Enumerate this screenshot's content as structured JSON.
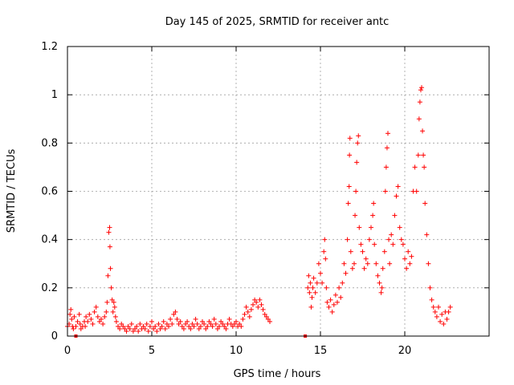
{
  "chart_data": {
    "type": "scatter",
    "title": "Day 145 of 2025, SRMTID for receiver antc",
    "xlabel": "GPS time / hours",
    "ylabel": "SRMTID / TECUs",
    "xlim": [
      0,
      25
    ],
    "ylim": [
      0,
      1.2
    ],
    "xticks": [
      0,
      5,
      10,
      15,
      20
    ],
    "yticks": [
      0,
      0.2,
      0.4,
      0.6,
      0.8,
      1,
      1.2
    ],
    "ytick_labels": [
      "0",
      "0.2",
      "0.4",
      "0.6",
      "0.8",
      "1",
      "1.2"
    ],
    "grid": true,
    "marker": "+",
    "color": "#ff0000",
    "series": [
      {
        "name": "SRMTID",
        "points": [
          [
            0.0,
            0.04
          ],
          [
            0.1,
            0.05
          ],
          [
            0.15,
            0.09
          ],
          [
            0.2,
            0.11
          ],
          [
            0.25,
            0.07
          ],
          [
            0.3,
            0.04
          ],
          [
            0.35,
            0.03
          ],
          [
            0.4,
            0.08
          ],
          [
            0.5,
            0.04
          ],
          [
            0.6,
            0.06
          ],
          [
            0.7,
            0.09
          ],
          [
            0.75,
            0.05
          ],
          [
            0.8,
            0.03
          ],
          [
            0.9,
            0.04
          ],
          [
            1.0,
            0.06
          ],
          [
            1.05,
            0.04
          ],
          [
            1.1,
            0.08
          ],
          [
            1.2,
            0.06
          ],
          [
            1.3,
            0.09
          ],
          [
            1.4,
            0.07
          ],
          [
            1.5,
            0.05
          ],
          [
            1.6,
            0.1
          ],
          [
            1.7,
            0.12
          ],
          [
            1.8,
            0.08
          ],
          [
            1.9,
            0.06
          ],
          [
            2.0,
            0.07
          ],
          [
            2.1,
            0.05
          ],
          [
            2.2,
            0.08
          ],
          [
            2.3,
            0.1
          ],
          [
            2.35,
            0.14
          ],
          [
            2.4,
            0.25
          ],
          [
            2.45,
            0.43
          ],
          [
            2.5,
            0.45
          ],
          [
            2.52,
            0.37
          ],
          [
            2.55,
            0.28
          ],
          [
            2.6,
            0.2
          ],
          [
            2.65,
            0.15
          ],
          [
            2.7,
            0.1
          ],
          [
            2.75,
            0.14
          ],
          [
            2.8,
            0.12
          ],
          [
            2.85,
            0.08
          ],
          [
            2.9,
            0.06
          ],
          [
            3.0,
            0.04
          ],
          [
            3.1,
            0.03
          ],
          [
            3.2,
            0.05
          ],
          [
            3.3,
            0.04
          ],
          [
            3.4,
            0.03
          ],
          [
            3.5,
            0.02
          ],
          [
            3.6,
            0.04
          ],
          [
            3.7,
            0.03
          ],
          [
            3.8,
            0.05
          ],
          [
            3.9,
            0.02
          ],
          [
            4.0,
            0.03
          ],
          [
            4.1,
            0.04
          ],
          [
            4.2,
            0.02
          ],
          [
            4.3,
            0.05
          ],
          [
            4.4,
            0.03
          ],
          [
            4.5,
            0.04
          ],
          [
            4.6,
            0.03
          ],
          [
            4.7,
            0.05
          ],
          [
            4.8,
            0.02
          ],
          [
            4.9,
            0.04
          ],
          [
            5.0,
            0.06
          ],
          [
            5.1,
            0.03
          ],
          [
            5.2,
            0.04
          ],
          [
            5.3,
            0.02
          ],
          [
            5.4,
            0.05
          ],
          [
            5.5,
            0.03
          ],
          [
            5.6,
            0.04
          ],
          [
            5.7,
            0.06
          ],
          [
            5.8,
            0.03
          ],
          [
            5.9,
            0.05
          ],
          [
            6.0,
            0.04
          ],
          [
            6.1,
            0.07
          ],
          [
            6.2,
            0.05
          ],
          [
            6.3,
            0.09
          ],
          [
            6.4,
            0.1
          ],
          [
            6.5,
            0.07
          ],
          [
            6.6,
            0.05
          ],
          [
            6.7,
            0.06
          ],
          [
            6.8,
            0.04
          ],
          [
            6.9,
            0.03
          ],
          [
            7.0,
            0.05
          ],
          [
            7.1,
            0.06
          ],
          [
            7.2,
            0.04
          ],
          [
            7.3,
            0.03
          ],
          [
            7.4,
            0.05
          ],
          [
            7.5,
            0.04
          ],
          [
            7.6,
            0.07
          ],
          [
            7.7,
            0.05
          ],
          [
            7.8,
            0.03
          ],
          [
            7.9,
            0.04
          ],
          [
            8.0,
            0.06
          ],
          [
            8.1,
            0.05
          ],
          [
            8.2,
            0.03
          ],
          [
            8.3,
            0.04
          ],
          [
            8.4,
            0.06
          ],
          [
            8.5,
            0.05
          ],
          [
            8.6,
            0.04
          ],
          [
            8.7,
            0.07
          ],
          [
            8.8,
            0.05
          ],
          [
            8.9,
            0.03
          ],
          [
            9.0,
            0.04
          ],
          [
            9.1,
            0.06
          ],
          [
            9.2,
            0.05
          ],
          [
            9.3,
            0.04
          ],
          [
            9.4,
            0.03
          ],
          [
            9.5,
            0.05
          ],
          [
            9.6,
            0.07
          ],
          [
            9.7,
            0.05
          ],
          [
            9.8,
            0.04
          ],
          [
            9.9,
            0.05
          ],
          [
            10.0,
            0.06
          ],
          [
            10.1,
            0.04
          ],
          [
            10.2,
            0.05
          ],
          [
            10.3,
            0.04
          ],
          [
            10.4,
            0.07
          ],
          [
            10.5,
            0.09
          ],
          [
            10.6,
            0.12
          ],
          [
            10.7,
            0.1
          ],
          [
            10.8,
            0.08
          ],
          [
            10.9,
            0.11
          ],
          [
            11.0,
            0.13
          ],
          [
            11.1,
            0.15
          ],
          [
            11.2,
            0.14
          ],
          [
            11.3,
            0.12
          ],
          [
            11.4,
            0.15
          ],
          [
            11.5,
            0.13
          ],
          [
            11.6,
            0.11
          ],
          [
            11.7,
            0.09
          ],
          [
            11.8,
            0.08
          ],
          [
            11.9,
            0.07
          ],
          [
            12.0,
            0.06
          ],
          [
            14.25,
            0.2
          ],
          [
            14.3,
            0.25
          ],
          [
            14.35,
            0.18
          ],
          [
            14.4,
            0.22
          ],
          [
            14.45,
            0.12
          ],
          [
            14.5,
            0.16
          ],
          [
            14.55,
            0.2
          ],
          [
            14.6,
            0.24
          ],
          [
            14.7,
            0.18
          ],
          [
            14.8,
            0.22
          ],
          [
            14.9,
            0.3
          ],
          [
            15.0,
            0.26
          ],
          [
            15.1,
            0.22
          ],
          [
            15.2,
            0.35
          ],
          [
            15.25,
            0.4
          ],
          [
            15.3,
            0.32
          ],
          [
            15.35,
            0.2
          ],
          [
            15.4,
            0.14
          ],
          [
            15.5,
            0.12
          ],
          [
            15.6,
            0.15
          ],
          [
            15.7,
            0.1
          ],
          [
            15.8,
            0.13
          ],
          [
            15.9,
            0.17
          ],
          [
            16.0,
            0.14
          ],
          [
            16.1,
            0.2
          ],
          [
            16.2,
            0.16
          ],
          [
            16.3,
            0.22
          ],
          [
            16.4,
            0.3
          ],
          [
            16.5,
            0.26
          ],
          [
            16.6,
            0.4
          ],
          [
            16.65,
            0.55
          ],
          [
            16.7,
            0.62
          ],
          [
            16.72,
            0.75
          ],
          [
            16.75,
            0.82
          ],
          [
            16.8,
            0.35
          ],
          [
            16.9,
            0.28
          ],
          [
            17.0,
            0.3
          ],
          [
            17.05,
            0.5
          ],
          [
            17.1,
            0.6
          ],
          [
            17.15,
            0.72
          ],
          [
            17.2,
            0.8
          ],
          [
            17.25,
            0.83
          ],
          [
            17.3,
            0.45
          ],
          [
            17.4,
            0.38
          ],
          [
            17.5,
            0.35
          ],
          [
            17.6,
            0.28
          ],
          [
            17.7,
            0.32
          ],
          [
            17.8,
            0.3
          ],
          [
            17.9,
            0.4
          ],
          [
            18.0,
            0.45
          ],
          [
            18.1,
            0.5
          ],
          [
            18.15,
            0.55
          ],
          [
            18.2,
            0.38
          ],
          [
            18.3,
            0.3
          ],
          [
            18.4,
            0.25
          ],
          [
            18.5,
            0.22
          ],
          [
            18.6,
            0.18
          ],
          [
            18.65,
            0.2
          ],
          [
            18.7,
            0.28
          ],
          [
            18.8,
            0.35
          ],
          [
            18.85,
            0.6
          ],
          [
            18.9,
            0.7
          ],
          [
            18.95,
            0.78
          ],
          [
            19.0,
            0.84
          ],
          [
            19.05,
            0.4
          ],
          [
            19.1,
            0.3
          ],
          [
            19.2,
            0.42
          ],
          [
            19.3,
            0.38
          ],
          [
            19.4,
            0.5
          ],
          [
            19.5,
            0.58
          ],
          [
            19.6,
            0.62
          ],
          [
            19.7,
            0.45
          ],
          [
            19.8,
            0.4
          ],
          [
            19.9,
            0.38
          ],
          [
            20.0,
            0.32
          ],
          [
            20.1,
            0.28
          ],
          [
            20.2,
            0.35
          ],
          [
            20.3,
            0.3
          ],
          [
            20.4,
            0.33
          ],
          [
            20.5,
            0.6
          ],
          [
            20.6,
            0.7
          ],
          [
            20.7,
            0.6
          ],
          [
            20.8,
            0.75
          ],
          [
            20.85,
            0.9
          ],
          [
            20.9,
            0.97
          ],
          [
            20.95,
            1.02
          ],
          [
            21.0,
            1.03
          ],
          [
            21.05,
            0.85
          ],
          [
            21.1,
            0.75
          ],
          [
            21.15,
            0.7
          ],
          [
            21.2,
            0.55
          ],
          [
            21.3,
            0.42
          ],
          [
            21.4,
            0.3
          ],
          [
            21.5,
            0.2
          ],
          [
            21.6,
            0.15
          ],
          [
            21.7,
            0.12
          ],
          [
            21.8,
            0.1
          ],
          [
            21.9,
            0.08
          ],
          [
            22.0,
            0.12
          ],
          [
            22.1,
            0.06
          ],
          [
            22.2,
            0.09
          ],
          [
            22.3,
            0.05
          ],
          [
            22.4,
            0.1
          ],
          [
            22.5,
            0.07
          ],
          [
            22.6,
            0.1
          ],
          [
            22.7,
            0.12
          ]
        ]
      }
    ],
    "bottom_markers": [
      [
        0.5,
        0.0
      ],
      [
        14.1,
        0.0
      ]
    ]
  }
}
